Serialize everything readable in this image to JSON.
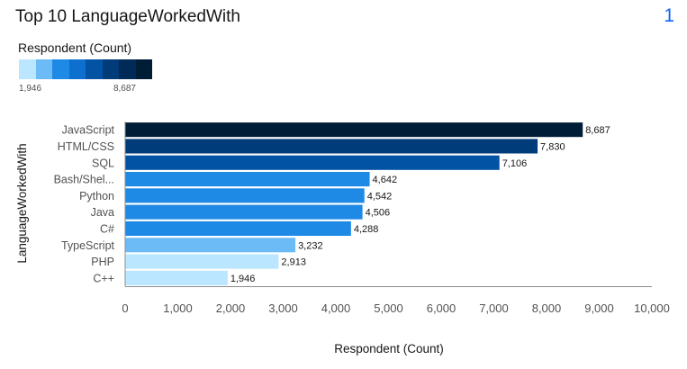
{
  "header": {
    "title": "Top 10 LanguageWorkedWith",
    "badge": "1"
  },
  "legend": {
    "title": "Respondent (Count)",
    "min_label": "1,946",
    "max_label": "8,687",
    "colors": [
      "#bae6ff",
      "#6cbaf6",
      "#1f8ae6",
      "#0d6fcf",
      "#0353a4",
      "#003b7a",
      "#002a58",
      "#001d38"
    ]
  },
  "chart_data": {
    "type": "bar",
    "orientation": "horizontal",
    "categories": [
      "JavaScript",
      "HTML/CSS",
      "SQL",
      "Bash/Shel...",
      "Python",
      "Java",
      "C#",
      "TypeScript",
      "PHP",
      "C++"
    ],
    "values": [
      8687,
      7830,
      7106,
      4642,
      4542,
      4506,
      4288,
      3232,
      2913,
      1946
    ],
    "value_labels": [
      "8,687",
      "7,830",
      "7,106",
      "4,642",
      "4,542",
      "4,506",
      "4,288",
      "3,232",
      "2,913",
      "1,946"
    ],
    "bar_colors": [
      "#001d38",
      "#003b7a",
      "#0353a4",
      "#1f8ae6",
      "#1f8ae6",
      "#1f8ae6",
      "#1f8ae6",
      "#6cbaf6",
      "#bae6ff",
      "#bae6ff"
    ],
    "xlabel": "Respondent (Count)",
    "ylabel": "LanguageWorkedWith",
    "xlim": [
      0,
      10000
    ],
    "xticks": [
      0,
      1000,
      2000,
      3000,
      4000,
      5000,
      6000,
      7000,
      8000,
      9000,
      10000
    ],
    "xtick_labels": [
      "0",
      "1,000",
      "2,000",
      "3,000",
      "4,000",
      "5,000",
      "6,000",
      "7,000",
      "8,000",
      "9,000",
      "10,000"
    ],
    "grid": false,
    "legend_position": "top-left"
  }
}
